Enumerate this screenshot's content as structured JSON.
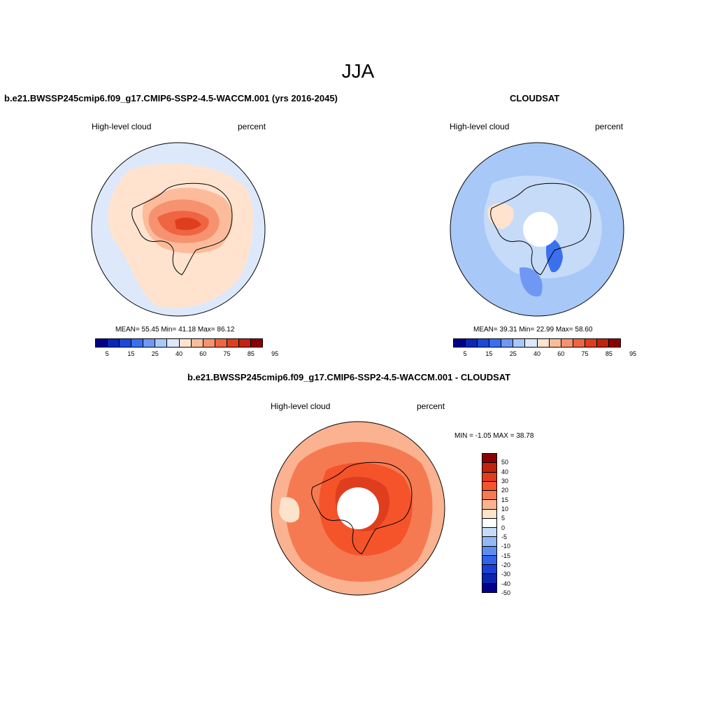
{
  "main_title": "JJA",
  "colors": {
    "abs_scale": [
      "#00008b",
      "#0b27b5",
      "#1c49d8",
      "#3a6ff0",
      "#6f98f5",
      "#a8c8f7",
      "#dde9fb",
      "#ffe3cf",
      "#fcbc9c",
      "#f79270",
      "#ef6541",
      "#df3e1e",
      "#c0230f",
      "#8b0000"
    ],
    "diff_scale": [
      "#8b0000",
      "#c0230f",
      "#df3e1e",
      "#f5532a",
      "#f57a52",
      "#fab290",
      "#fde2cc",
      "#ffffff",
      "#c6dbf8",
      "#94b7f5",
      "#5e8df2",
      "#3063ec",
      "#1a40d4",
      "#0b24b0",
      "#00008b"
    ]
  },
  "chart_data": [
    {
      "type": "heatmap",
      "projection": "south-polar-stereographic",
      "title": "b.e21.BWSSP245cmip6.f09_g17.CMIP6-SSP2-4.5-WACCM.001 (yrs 2016-2045)",
      "left_label": "High-level cloud",
      "right_label": "percent",
      "stats": {
        "mean_label": "MEAN=",
        "mean": "55.45",
        "min_label": "Min=",
        "min": "41.18",
        "max_label": "Max=",
        "max": "86.12"
      },
      "colorbar_ticks": [
        "5",
        "15",
        "25",
        "40",
        "60",
        "75",
        "85",
        "95"
      ],
      "values_range": [
        41.18,
        86.12
      ]
    },
    {
      "type": "heatmap",
      "projection": "south-polar-stereographic",
      "title": "CLOUDSAT",
      "left_label": "High-level cloud",
      "right_label": "percent",
      "stats": {
        "mean_label": "MEAN=",
        "mean": "39.31",
        "min_label": "Min=",
        "min": "22.99",
        "max_label": "Max=",
        "max": "58.60"
      },
      "colorbar_ticks": [
        "5",
        "15",
        "25",
        "40",
        "60",
        "75",
        "85",
        "95"
      ],
      "values_range": [
        22.99,
        58.6
      ]
    },
    {
      "type": "heatmap",
      "projection": "south-polar-stereographic",
      "title": "b.e21.BWSSP245cmip6.f09_g17.CMIP6-SSP2-4.5-WACCM.001 - CLOUDSAT",
      "left_label": "High-level cloud",
      "right_label": "percent",
      "minmax_text": "MIN =  -1.05 MAX =  38.78",
      "colorbar_ticks": [
        "50",
        "40",
        "30",
        "20",
        "15",
        "10",
        "5",
        "0",
        "-5",
        "-10",
        "-15",
        "-20",
        "-30",
        "-40",
        "-50"
      ],
      "values_range": [
        -1.05,
        38.78
      ]
    }
  ]
}
